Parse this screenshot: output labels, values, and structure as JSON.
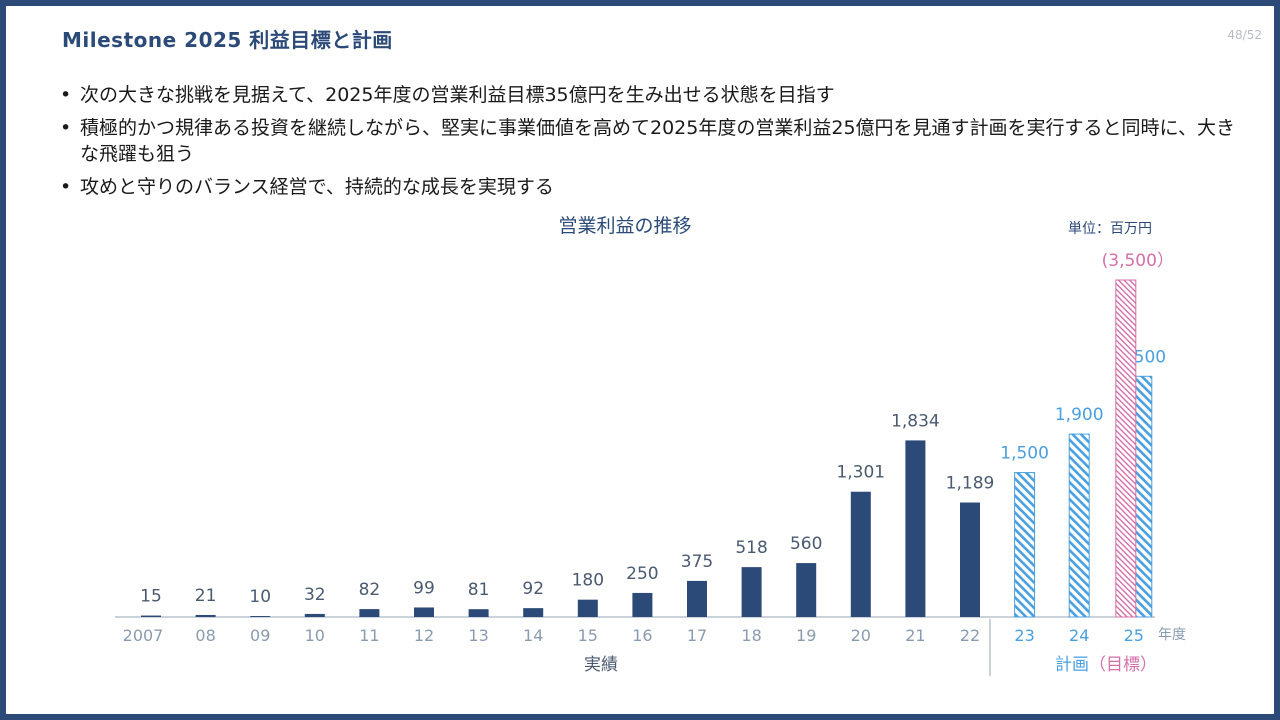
{
  "header": {
    "title": "Milestone 2025 利益目標と計画",
    "page": "48/52"
  },
  "bullets": [
    "次の大きな挑戦を見据えて、2025年度の営業利益目標35億円を生み出せる状態を目指す",
    "積極的かつ規律ある投資を継続しながら、堅実に事業価値を高めて2025年度の営業利益25億円を見通す計画を実行すると同時に、大きな飛躍も狙う",
    "攻めと守りのバランス経営で、持続的な成長を実現する"
  ],
  "chart_data": {
    "type": "bar",
    "title": "営業利益の推移",
    "unit_label": "単位：百万円",
    "x_unit": "年度",
    "categories": [
      "2007",
      "08",
      "09",
      "10",
      "11",
      "12",
      "13",
      "14",
      "15",
      "16",
      "17",
      "18",
      "19",
      "20",
      "21",
      "22",
      "23",
      "24",
      "25"
    ],
    "series": [
      {
        "kind": "actual",
        "points": [
          [
            "2007",
            15
          ],
          [
            "08",
            21
          ],
          [
            "09",
            10
          ],
          [
            "10",
            32
          ],
          [
            "11",
            82
          ],
          [
            "12",
            99
          ],
          [
            "13",
            81
          ],
          [
            "14",
            92
          ],
          [
            "15",
            180
          ],
          [
            "16",
            250
          ],
          [
            "17",
            375
          ],
          [
            "18",
            518
          ],
          [
            "19",
            560
          ],
          [
            "20",
            1301
          ],
          [
            "21",
            1834
          ],
          [
            "22",
            1189
          ]
        ]
      },
      {
        "kind": "plan",
        "points": [
          [
            "23",
            1500
          ],
          [
            "24",
            1900
          ],
          [
            "25",
            2500
          ]
        ]
      },
      {
        "kind": "target",
        "points": [
          [
            "25",
            3500
          ]
        ],
        "value_label": "(3,500）"
      }
    ],
    "groups": [
      {
        "label": "実績",
        "from": "2007",
        "to": "22"
      },
      {
        "label": "計画",
        "label2": "（目標）",
        "from": "23",
        "to": "25"
      }
    ],
    "colors": {
      "actual": "#2b4a78",
      "plan": "#4a9fe0",
      "target": "#d46fa8",
      "axis_text": "#8a9bb0"
    },
    "ylim": [
      0,
      3500
    ]
  }
}
